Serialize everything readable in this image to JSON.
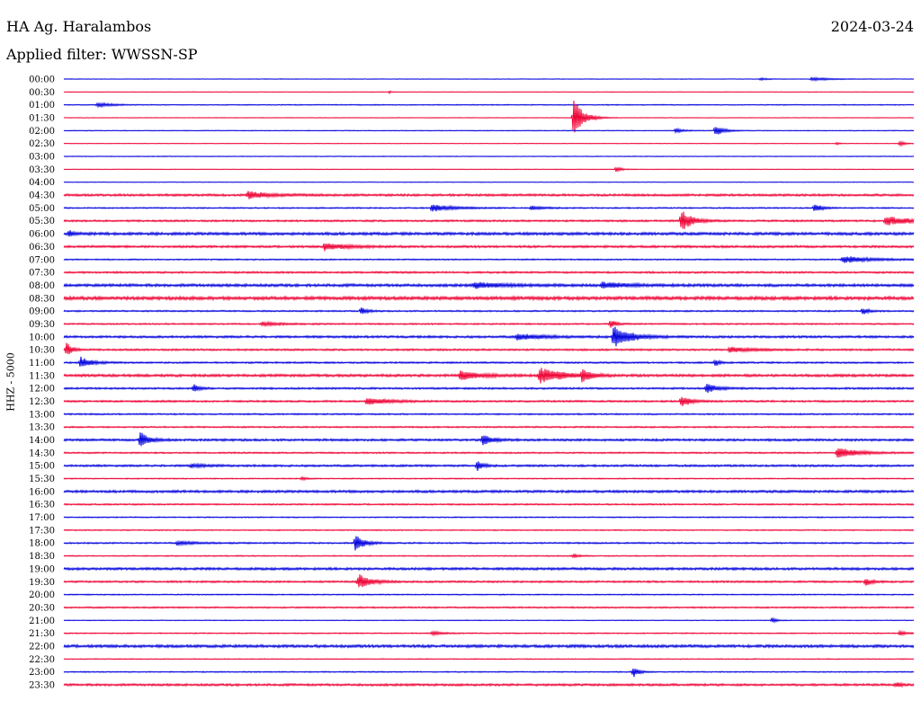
{
  "header": {
    "station": "HA Ag. Haralambos",
    "filter": "Applied filter: WWSSN-SP",
    "date": "2024-03-24",
    "y_axis_label": "HHZ - 5000"
  },
  "colors": {
    "blue": "#0000dd",
    "red": "#ee0033"
  },
  "chart_data": {
    "type": "line",
    "title": "HA Ag. Haralambos",
    "subtitle": "Applied filter: WWSSN-SP",
    "date": "2024-03-24",
    "ylabel": "HHZ - 5000",
    "xlim": [
      0,
      30
    ],
    "rows": [
      {
        "label": "00:00",
        "color": "blue",
        "noise": 0.3,
        "events": [
          {
            "t": 24.6,
            "amp": 1.5,
            "dur": 0.5
          },
          {
            "t": 26.4,
            "amp": 2,
            "dur": 1.2
          }
        ]
      },
      {
        "label": "00:30",
        "color": "red",
        "noise": 0.3,
        "events": [
          {
            "t": 11.5,
            "amp": 1.5,
            "dur": 0.1
          }
        ]
      },
      {
        "label": "01:00",
        "color": "blue",
        "noise": 0.5,
        "events": [
          {
            "t": 1.2,
            "amp": 2.5,
            "dur": 1
          }
        ]
      },
      {
        "label": "01:30",
        "color": "red",
        "noise": 0.3,
        "events": [
          {
            "t": 18.0,
            "amp": 22,
            "dur": 0.7
          }
        ]
      },
      {
        "label": "02:00",
        "color": "blue",
        "noise": 0.4,
        "events": [
          {
            "t": 21.6,
            "amp": 3,
            "dur": 0.5
          },
          {
            "t": 23.0,
            "amp": 6,
            "dur": 0.6
          }
        ]
      },
      {
        "label": "02:30",
        "color": "red",
        "noise": 0.3,
        "events": [
          {
            "t": 27.3,
            "amp": 1.5,
            "dur": 0.2
          },
          {
            "t": 29.5,
            "amp": 2.5,
            "dur": 0.4
          }
        ]
      },
      {
        "label": "03:00",
        "color": "blue",
        "noise": 0.4,
        "events": []
      },
      {
        "label": "03:30",
        "color": "red",
        "noise": 0.3,
        "events": [
          {
            "t": 19.5,
            "amp": 3,
            "dur": 0.4
          }
        ]
      },
      {
        "label": "04:00",
        "color": "blue",
        "noise": 0.3,
        "events": []
      },
      {
        "label": "04:30",
        "color": "red",
        "noise": 1.2,
        "events": [
          {
            "t": 6.5,
            "amp": 4,
            "dur": 1.5
          }
        ]
      },
      {
        "label": "05:00",
        "color": "blue",
        "noise": 0.7,
        "events": [
          {
            "t": 13.0,
            "amp": 4,
            "dur": 1.5
          },
          {
            "t": 16.5,
            "amp": 2,
            "dur": 1
          },
          {
            "t": 26.5,
            "amp": 5,
            "dur": 0.5
          }
        ]
      },
      {
        "label": "05:30",
        "color": "red",
        "noise": 1.0,
        "events": [
          {
            "t": 21.8,
            "amp": 12,
            "dur": 0.8
          },
          {
            "t": 29.0,
            "amp": 5,
            "dur": 2
          }
        ]
      },
      {
        "label": "06:00",
        "color": "blue",
        "noise": 1.5,
        "events": [
          {
            "t": 0.2,
            "amp": 3,
            "dur": 0.4
          }
        ]
      },
      {
        "label": "06:30",
        "color": "red",
        "noise": 1.2,
        "events": [
          {
            "t": 9.2,
            "amp": 4,
            "dur": 1.5
          }
        ]
      },
      {
        "label": "07:00",
        "color": "blue",
        "noise": 0.7,
        "events": [
          {
            "t": 27.5,
            "amp": 4,
            "dur": 2
          }
        ]
      },
      {
        "label": "07:30",
        "color": "red",
        "noise": 1.0,
        "events": []
      },
      {
        "label": "08:00",
        "color": "blue",
        "noise": 1.5,
        "events": [
          {
            "t": 14.5,
            "amp": 3,
            "dur": 2
          },
          {
            "t": 19.0,
            "amp": 3,
            "dur": 2
          }
        ]
      },
      {
        "label": "08:30",
        "color": "red",
        "noise": 1.8,
        "events": []
      },
      {
        "label": "09:00",
        "color": "blue",
        "noise": 0.8,
        "events": [
          {
            "t": 10.5,
            "amp": 4,
            "dur": 0.4
          },
          {
            "t": 28.2,
            "amp": 4,
            "dur": 0.4
          }
        ]
      },
      {
        "label": "09:30",
        "color": "red",
        "noise": 0.8,
        "events": [
          {
            "t": 19.3,
            "amp": 5,
            "dur": 0.4
          },
          {
            "t": 7.0,
            "amp": 2,
            "dur": 1.5
          }
        ]
      },
      {
        "label": "10:00",
        "color": "blue",
        "noise": 1.2,
        "events": [
          {
            "t": 19.4,
            "amp": 12,
            "dur": 1.2
          },
          {
            "t": 16,
            "amp": 3,
            "dur": 2
          }
        ]
      },
      {
        "label": "10:30",
        "color": "red",
        "noise": 1.0,
        "events": [
          {
            "t": 0.1,
            "amp": 8,
            "dur": 0.4
          },
          {
            "t": 23.5,
            "amp": 3,
            "dur": 1.5
          }
        ]
      },
      {
        "label": "11:00",
        "color": "blue",
        "noise": 0.9,
        "events": [
          {
            "t": 0.6,
            "amp": 6,
            "dur": 0.8
          },
          {
            "t": 23.0,
            "amp": 4,
            "dur": 0.3
          }
        ]
      },
      {
        "label": "11:30",
        "color": "red",
        "noise": 1.4,
        "events": [
          {
            "t": 14.0,
            "amp": 5,
            "dur": 1.5
          },
          {
            "t": 16.8,
            "amp": 9,
            "dur": 1.5
          },
          {
            "t": 18.3,
            "amp": 7,
            "dur": 0.6
          }
        ]
      },
      {
        "label": "12:00",
        "color": "blue",
        "noise": 1.0,
        "events": [
          {
            "t": 4.6,
            "amp": 4,
            "dur": 0.4
          },
          {
            "t": 22.7,
            "amp": 5,
            "dur": 0.8
          }
        ]
      },
      {
        "label": "12:30",
        "color": "red",
        "noise": 1.0,
        "events": [
          {
            "t": 10.7,
            "amp": 4,
            "dur": 1.5
          },
          {
            "t": 21.8,
            "amp": 7,
            "dur": 0.6
          }
        ]
      },
      {
        "label": "13:00",
        "color": "blue",
        "noise": 0.8,
        "events": []
      },
      {
        "label": "13:30",
        "color": "red",
        "noise": 0.8,
        "events": []
      },
      {
        "label": "14:00",
        "color": "blue",
        "noise": 1.2,
        "events": [
          {
            "t": 2.7,
            "amp": 9,
            "dur": 0.6
          },
          {
            "t": 14.8,
            "amp": 7,
            "dur": 0.6
          }
        ]
      },
      {
        "label": "14:30",
        "color": "red",
        "noise": 0.8,
        "events": [
          {
            "t": 27.3,
            "amp": 6,
            "dur": 1.5
          }
        ]
      },
      {
        "label": "15:00",
        "color": "blue",
        "noise": 1.1,
        "events": [
          {
            "t": 14.6,
            "amp": 6,
            "dur": 0.4
          },
          {
            "t": 4.5,
            "amp": 2,
            "dur": 1
          }
        ]
      },
      {
        "label": "15:30",
        "color": "red",
        "noise": 0.6,
        "events": [
          {
            "t": 8.4,
            "amp": 2,
            "dur": 0.3
          }
        ]
      },
      {
        "label": "16:00",
        "color": "blue",
        "noise": 1.3,
        "events": []
      },
      {
        "label": "16:30",
        "color": "red",
        "noise": 0.8,
        "events": []
      },
      {
        "label": "17:00",
        "color": "blue",
        "noise": 0.6,
        "events": []
      },
      {
        "label": "17:30",
        "color": "red",
        "noise": 0.6,
        "events": []
      },
      {
        "label": "18:00",
        "color": "blue",
        "noise": 0.8,
        "events": [
          {
            "t": 10.3,
            "amp": 10,
            "dur": 0.6
          },
          {
            "t": 4.0,
            "amp": 2,
            "dur": 1.5
          }
        ]
      },
      {
        "label": "18:30",
        "color": "red",
        "noise": 0.6,
        "events": [
          {
            "t": 18.0,
            "amp": 2,
            "dur": 0.4
          }
        ]
      },
      {
        "label": "19:00",
        "color": "blue",
        "noise": 1.3,
        "events": []
      },
      {
        "label": "19:30",
        "color": "red",
        "noise": 1.0,
        "events": [
          {
            "t": 10.4,
            "amp": 8,
            "dur": 0.9
          },
          {
            "t": 28.3,
            "amp": 4,
            "dur": 0.5
          }
        ]
      },
      {
        "label": "20:00",
        "color": "blue",
        "noise": 0.6,
        "events": []
      },
      {
        "label": "20:30",
        "color": "red",
        "noise": 0.8,
        "events": []
      },
      {
        "label": "21:00",
        "color": "blue",
        "noise": 0.4,
        "events": [
          {
            "t": 25.0,
            "amp": 3,
            "dur": 0.3
          }
        ]
      },
      {
        "label": "21:30",
        "color": "red",
        "noise": 0.6,
        "events": [
          {
            "t": 13.0,
            "amp": 2,
            "dur": 0.8
          },
          {
            "t": 29.5,
            "amp": 2,
            "dur": 0.6
          }
        ]
      },
      {
        "label": "22:00",
        "color": "blue",
        "noise": 1.5,
        "events": []
      },
      {
        "label": "22:30",
        "color": "red",
        "noise": 0.5,
        "events": []
      },
      {
        "label": "23:00",
        "color": "blue",
        "noise": 0.6,
        "events": [
          {
            "t": 20.1,
            "amp": 6,
            "dur": 0.4
          }
        ]
      },
      {
        "label": "23:30",
        "color": "red",
        "noise": 1.2,
        "events": [
          {
            "t": 29.4,
            "amp": 3,
            "dur": 0.3
          }
        ]
      }
    ]
  }
}
